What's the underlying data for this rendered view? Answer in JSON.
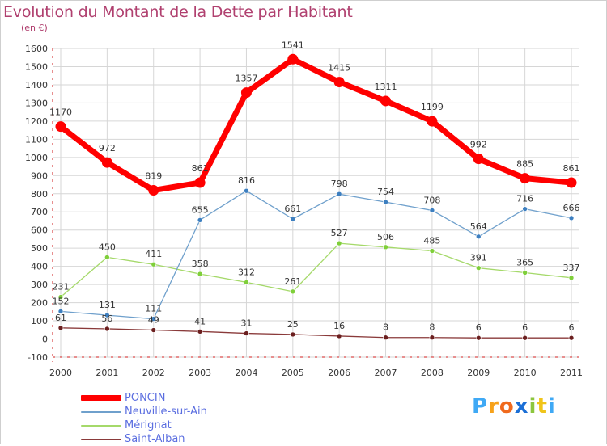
{
  "chart_data": {
    "type": "line",
    "title": "Evolution du Montant de la Dette par Habitant",
    "subtitle": "(en €)",
    "xlabel": "",
    "ylabel": "",
    "ylim": [
      -100,
      1600
    ],
    "yticks": [
      -100,
      0,
      100,
      200,
      300,
      400,
      500,
      600,
      700,
      800,
      900,
      1000,
      1100,
      1200,
      1300,
      1400,
      1500,
      1600
    ],
    "grid": true,
    "categories": [
      "2000",
      "2001",
      "2002",
      "2003",
      "2004",
      "2005",
      "2006",
      "2007",
      "2008",
      "2009",
      "2010",
      "2011"
    ],
    "series": [
      {
        "name": "PONCIN",
        "color": "#ff0000",
        "width": 7,
        "marker": 6.5,
        "values": [
          1170,
          972,
          819,
          861,
          1357,
          1541,
          1415,
          1311,
          1199,
          992,
          885,
          861
        ]
      },
      {
        "name": "Neuville-sur-Ain",
        "color": "#6fa0cc",
        "marker_color": "#3d7fc0",
        "width": 1.3,
        "marker": 3,
        "values": [
          152,
          131,
          111,
          655,
          816,
          661,
          798,
          754,
          708,
          564,
          716,
          666
        ]
      },
      {
        "name": "Mérignat",
        "color": "#a5d96a",
        "marker_color": "#7fcf3a",
        "width": 1.3,
        "marker": 3,
        "values": [
          231,
          450,
          411,
          358,
          312,
          261,
          527,
          506,
          485,
          391,
          365,
          337
        ]
      },
      {
        "name": "Saint-Alban",
        "color": "#8a3a3a",
        "marker_color": "#6b1f1f",
        "width": 1.3,
        "marker": 3,
        "values": [
          61,
          56,
          49,
          41,
          31,
          25,
          16,
          8,
          8,
          6,
          6,
          6
        ]
      }
    ],
    "legend_position": "bottom-left"
  },
  "branding": {
    "logo_letters": [
      "P",
      "r",
      "o",
      "x",
      "i",
      "t",
      "i"
    ],
    "logo_colors": [
      "#3fa9f5",
      "#f7a21b",
      "#f06a1d",
      "#1b6fd6",
      "#8cc63e",
      "#f0c419",
      "#3fa9f5"
    ]
  }
}
